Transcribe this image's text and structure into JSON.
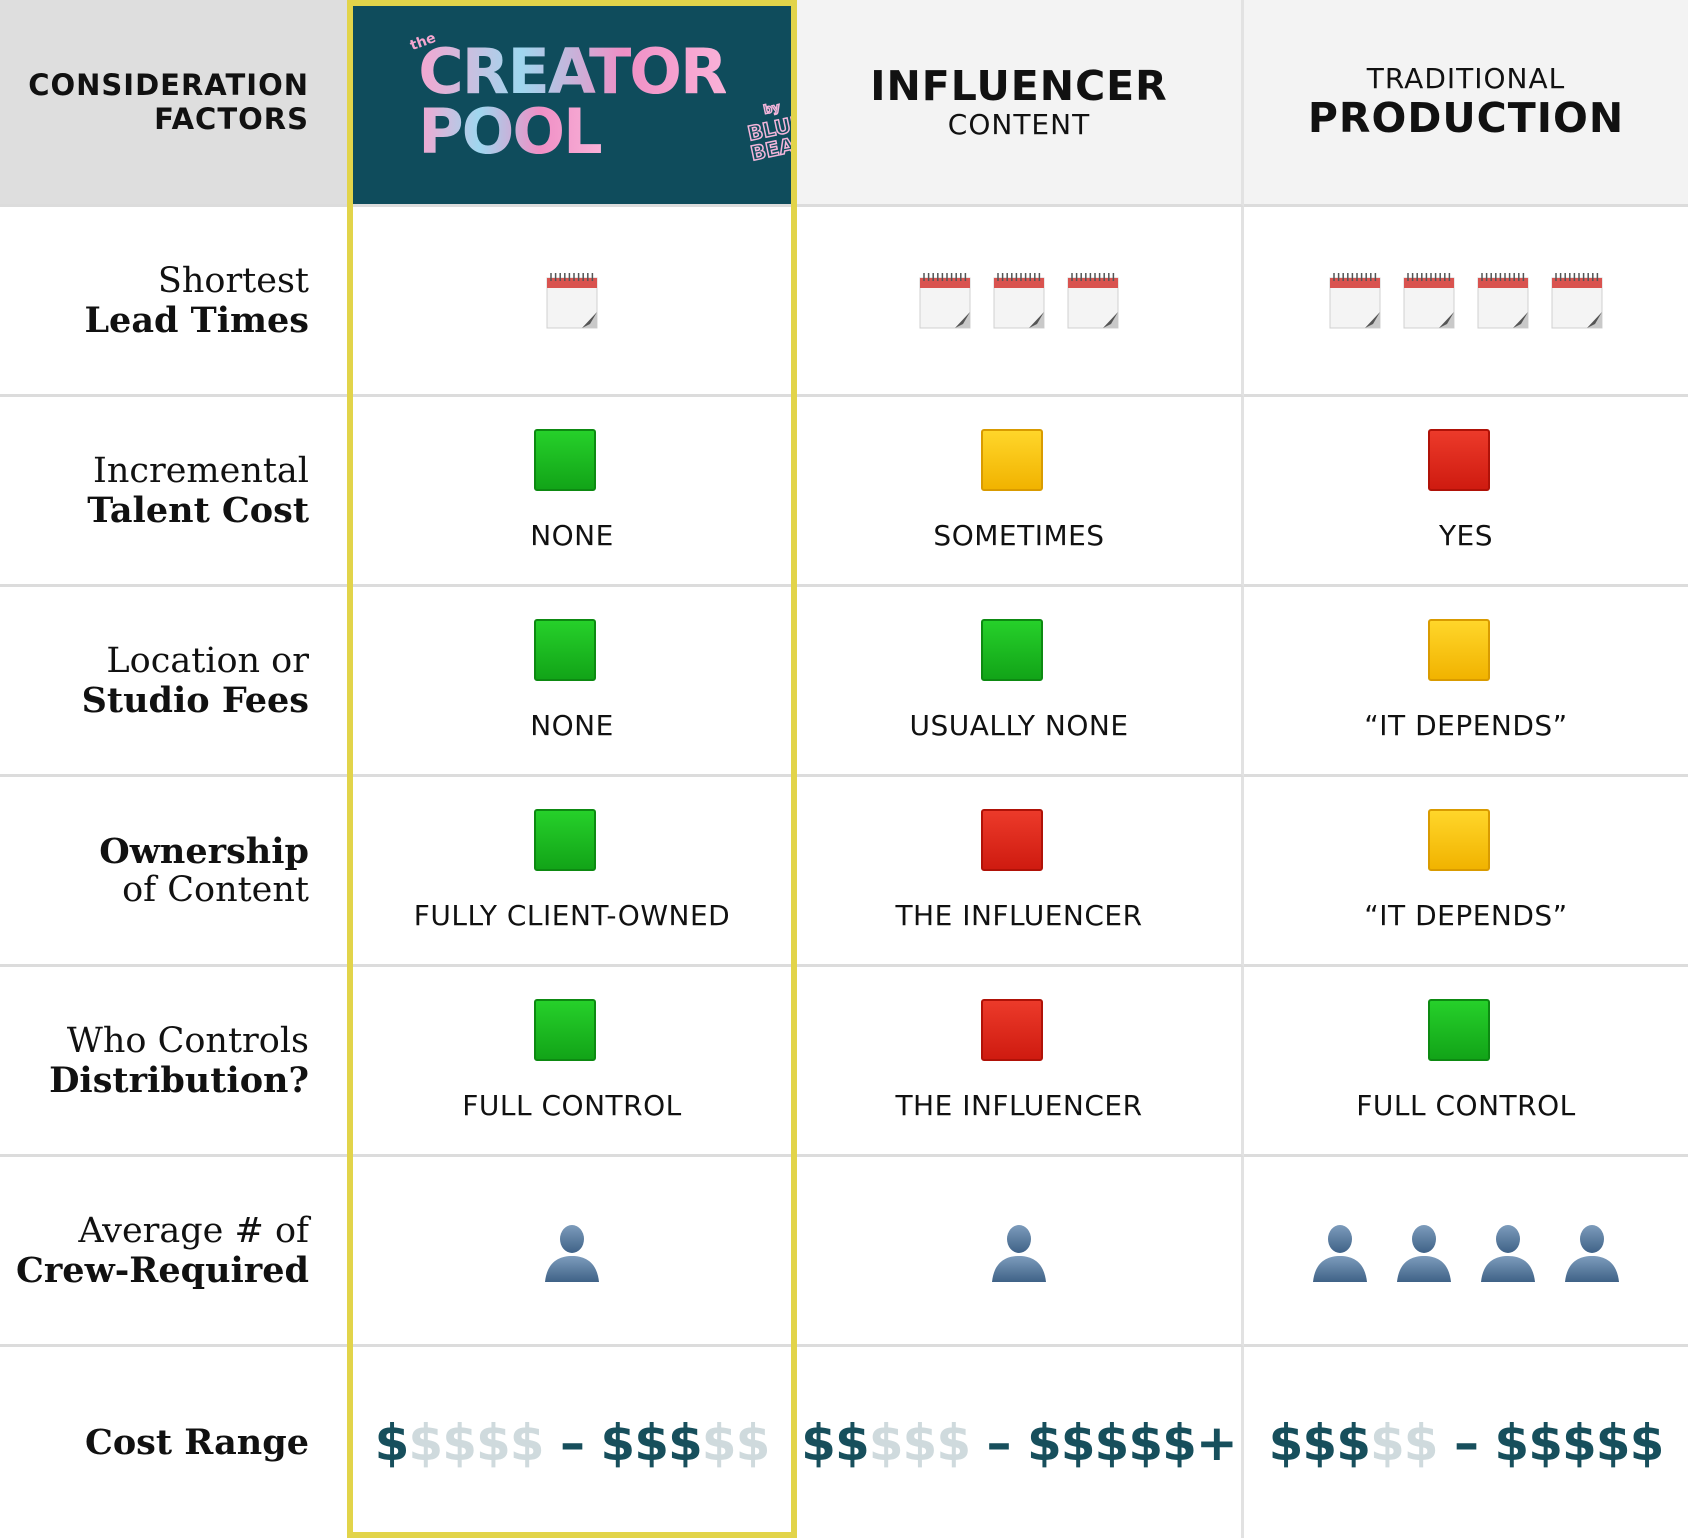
{
  "header": {
    "factors_line1": "CONSIDERATION",
    "factors_line2": "FACTORS",
    "creator_logo": {
      "the": "the",
      "line1": "CREATOR",
      "line2": "POOL",
      "by": "by",
      "blue": "BLUE",
      "bear": "BEAR"
    },
    "influencer_big": "INFLUENCER",
    "influencer_small": "CONTENT",
    "traditional_small": "TRADITIONAL",
    "traditional_big": "PRODUCTION"
  },
  "rows": [
    {
      "line1": "Shortest",
      "line2": "Lead Times",
      "creator": {
        "calendars": 1
      },
      "influencer": {
        "calendars": 3
      },
      "traditional": {
        "calendars": 4
      }
    },
    {
      "line1": "Incremental",
      "line2": "Talent Cost",
      "creator": {
        "color": "green",
        "label": "NONE"
      },
      "influencer": {
        "color": "yellow",
        "label": "SOMETIMES"
      },
      "traditional": {
        "color": "red",
        "label": "YES"
      }
    },
    {
      "line1": "Location or",
      "line2": "Studio Fees",
      "creator": {
        "color": "green",
        "label": "NONE"
      },
      "influencer": {
        "color": "green",
        "label": "USUALLY NONE"
      },
      "traditional": {
        "color": "yellow",
        "label": "“IT DEPENDS”"
      }
    },
    {
      "line1": "Ownership",
      "line2": "of Content",
      "creator": {
        "color": "green",
        "label": "FULLY CLIENT-OWNED"
      },
      "influencer": {
        "color": "red",
        "label": "THE INFLUENCER"
      },
      "traditional": {
        "color": "yellow",
        "label": "“IT DEPENDS”"
      }
    },
    {
      "line1": "Who Controls",
      "line2": "Distribution?",
      "creator": {
        "color": "green",
        "label": "FULL CONTROL"
      },
      "influencer": {
        "color": "red",
        "label": "THE INFLUENCER"
      },
      "traditional": {
        "color": "green",
        "label": "FULL CONTROL"
      }
    },
    {
      "line1": "Average # of",
      "line2": "Crew-Required",
      "creator": {
        "people": 1
      },
      "influencer": {
        "people": 1
      },
      "traditional": {
        "people": 4
      }
    },
    {
      "line1": "Cost Range",
      "line2": "",
      "creator": {
        "low_dark": "$",
        "low_light": "$$$$",
        "dash": " – ",
        "high_dark": "$$$",
        "high_light": "$$",
        "plus": ""
      },
      "influencer": {
        "low_dark": "$$",
        "low_light": "$$$",
        "dash": " – ",
        "high_dark": "$$$$$",
        "high_light": "",
        "plus": "+"
      },
      "traditional": {
        "low_dark": "$$$",
        "low_light": "$$",
        "dash": " – ",
        "high_dark": "$$$$$",
        "high_light": "",
        "plus": ""
      }
    }
  ],
  "colors": {
    "accent_frame": "#e2d44a",
    "creator_header": "#0f4c5c",
    "cost_dark": "#174f5c",
    "cost_light": "#cfdadd"
  },
  "icons": {
    "lead_time": "calendar-icon",
    "crew": "person-icon"
  }
}
